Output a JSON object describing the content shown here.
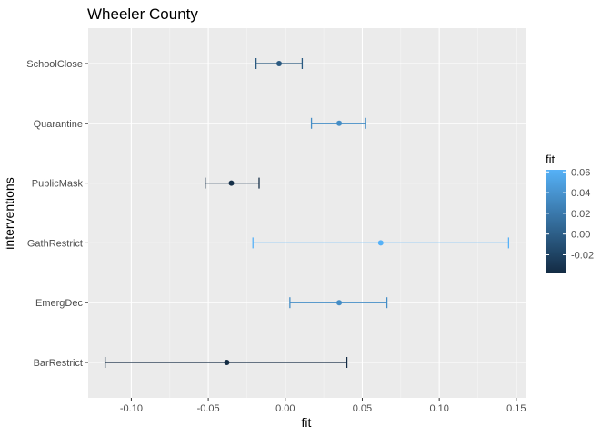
{
  "chart_data": {
    "type": "errorbar",
    "orientation": "horizontal",
    "title": "Wheeler County",
    "xlabel": "fit",
    "ylabel": "interventions",
    "xlim": [
      -0.128,
      0.156
    ],
    "x_ticks": [
      -0.1,
      -0.05,
      0.0,
      0.05,
      0.1,
      0.15
    ],
    "x_tick_labels": [
      "-0.10",
      "-0.05",
      "0.00",
      "0.05",
      "0.10",
      "0.15"
    ],
    "categories": [
      "SchoolClose",
      "Quarantine",
      "PublicMask",
      "GathRestrict",
      "EmergDec",
      "BarRestrict"
    ],
    "points": [
      {
        "category": "SchoolClose",
        "fit": -0.004,
        "lower": -0.019,
        "upper": 0.011
      },
      {
        "category": "Quarantine",
        "fit": 0.035,
        "lower": 0.017,
        "upper": 0.052
      },
      {
        "category": "PublicMask",
        "fit": -0.035,
        "lower": -0.052,
        "upper": -0.017
      },
      {
        "category": "GathRestrict",
        "fit": 0.062,
        "lower": -0.021,
        "upper": 0.145
      },
      {
        "category": "EmergDec",
        "fit": 0.035,
        "lower": 0.003,
        "upper": 0.066
      },
      {
        "category": "BarRestrict",
        "fit": -0.038,
        "lower": -0.117,
        "upper": 0.04
      }
    ],
    "grid": true,
    "legend": {
      "title": "fit",
      "position": "right",
      "type": "colorbar",
      "range": [
        -0.038,
        0.062
      ],
      "ticks": [
        -0.02,
        0.0,
        0.02,
        0.04,
        0.06
      ],
      "tick_labels": [
        "-0.02",
        "0.00",
        "0.02",
        "0.04",
        "0.06"
      ],
      "color_low": "#132B43",
      "color_high": "#56B1F7"
    },
    "panel_background": "#EBEBEB"
  }
}
